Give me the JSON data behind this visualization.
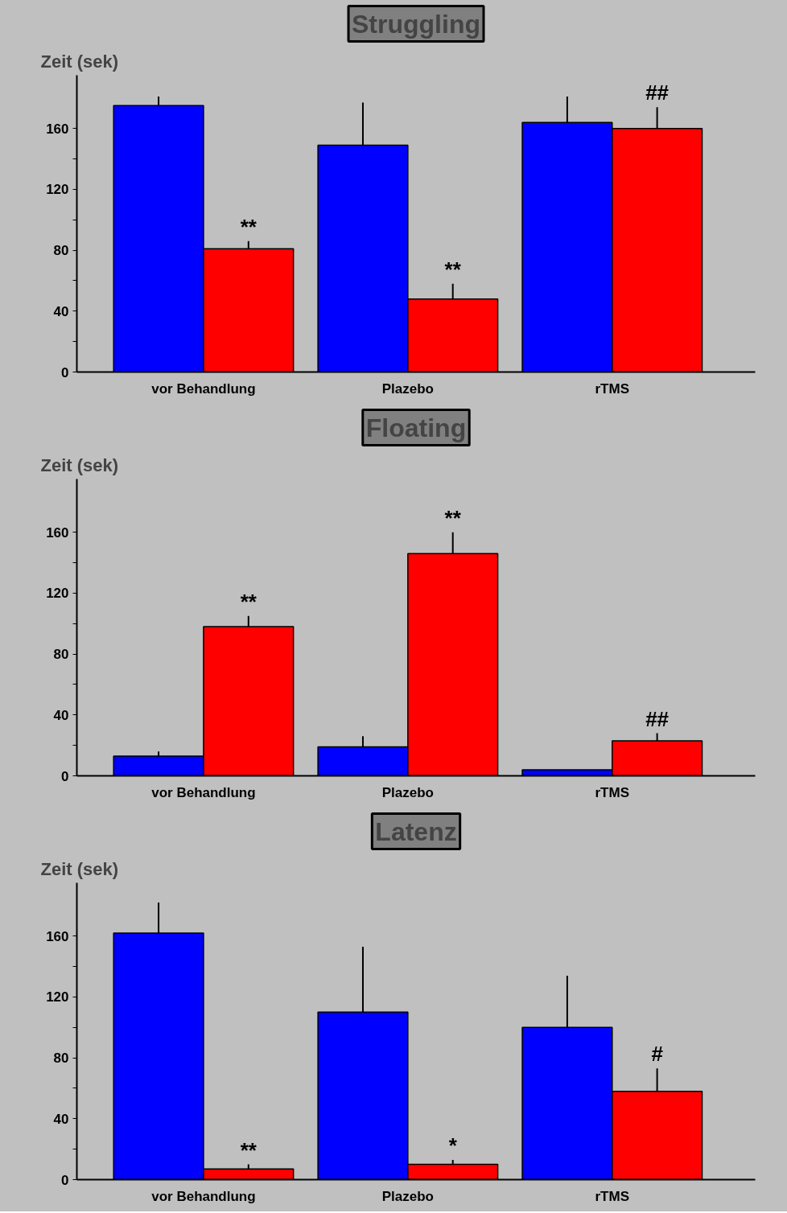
{
  "chart_data": [
    {
      "type": "bar",
      "title": "Struggling",
      "ylabel": "Zeit (sek)",
      "categories": [
        "vor Behandlung",
        "Plazebo",
        "rTMS"
      ],
      "series": [
        {
          "color": "#0000ff",
          "values": [
            175,
            149,
            164
          ],
          "errors": [
            [
              175,
              181
            ],
            [
              149,
              177
            ],
            [
              164,
              181
            ]
          ]
        },
        {
          "color": "#ff0000",
          "values": [
            81,
            48,
            160
          ],
          "errors": [
            [
              81,
              86
            ],
            [
              48,
              58
            ],
            [
              160,
              174
            ]
          ]
        }
      ],
      "ylim": [
        0,
        195
      ],
      "yticks": [
        0,
        {
          "value": 20,
          "label": null
        },
        40,
        {
          "value": 60,
          "label": null
        },
        80,
        {
          "value": 100,
          "label": null
        },
        120,
        {
          "value": 140,
          "label": null
        },
        160
      ],
      "grid": false,
      "annotations": [
        "**",
        "**",
        "##"
      ]
    },
    {
      "type": "bar",
      "title": "Floating",
      "ylabel": "Zeit (sek)",
      "categories": [
        "vor Behandlung",
        "Plazebo",
        "rTMS"
      ],
      "series": [
        {
          "color": "#0000ff",
          "values": [
            13,
            19,
            4
          ],
          "errors": [
            [
              13,
              16
            ],
            [
              19,
              26
            ],
            null
          ]
        },
        {
          "color": "#ff0000",
          "values": [
            98,
            146,
            23
          ],
          "errors": [
            [
              98,
              105
            ],
            [
              146,
              160
            ],
            [
              23,
              28
            ]
          ]
        }
      ],
      "ylim": [
        0,
        195
      ],
      "yticks": [
        0,
        {
          "value": 20,
          "label": null
        },
        40,
        {
          "value": 60,
          "label": null
        },
        80,
        {
          "value": 100,
          "label": null
        },
        120,
        {
          "value": 140,
          "label": null
        },
        160
      ],
      "grid": false,
      "annotations": [
        "**",
        "**",
        "##"
      ]
    },
    {
      "type": "bar",
      "title": "Latenz",
      "ylabel": "Zeit (sek)",
      "categories": [
        "vor Behandlung",
        "Plazebo",
        "rTMS"
      ],
      "series": [
        {
          "color": "#0000ff",
          "values": [
            162,
            110,
            100
          ],
          "errors": [
            [
              162,
              182
            ],
            [
              110,
              153
            ],
            [
              100,
              134
            ]
          ]
        },
        {
          "color": "#ff0000",
          "values": [
            7,
            10,
            58
          ],
          "errors": [
            [
              7,
              10
            ],
            [
              10,
              13
            ],
            [
              58,
              73
            ]
          ]
        }
      ],
      "ylim": [
        0,
        195
      ],
      "yticks": [
        0,
        {
          "value": 20,
          "label": null
        },
        40,
        {
          "value": 60,
          "label": null
        },
        80,
        {
          "value": 100,
          "label": null
        },
        120,
        {
          "value": 140,
          "label": null
        },
        160
      ],
      "grid": false,
      "annotations": [
        "**",
        "*",
        "#"
      ]
    }
  ]
}
